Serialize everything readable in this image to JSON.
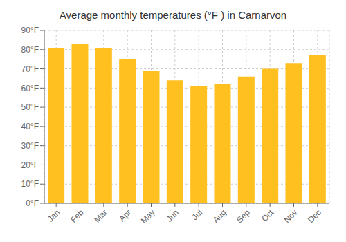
{
  "chart_data": {
    "type": "bar",
    "title": "Average monthly temperatures (°F ) in Carnarvon",
    "categories": [
      "Jan",
      "Feb",
      "Mar",
      "Apr",
      "May",
      "Jun",
      "Jul",
      "Aug",
      "Sep",
      "Oct",
      "Nov",
      "Dec"
    ],
    "values": [
      81,
      83,
      81,
      75,
      69,
      64,
      61,
      62,
      66,
      70,
      73,
      77
    ],
    "color": "#FFC020",
    "ylim": [
      0,
      90
    ],
    "yticks": [
      {
        "value": 0,
        "label": "0°F"
      },
      {
        "value": 10,
        "label": "10°F"
      },
      {
        "value": 20,
        "label": "20°F"
      },
      {
        "value": 30,
        "label": "30°F"
      },
      {
        "value": 40,
        "label": "40°F"
      },
      {
        "value": 50,
        "label": "50°F"
      },
      {
        "value": 60,
        "label": "60°F"
      },
      {
        "value": 70,
        "label": "70°F"
      },
      {
        "value": 80,
        "label": "80°F"
      },
      {
        "value": 90,
        "label": "90°F"
      }
    ],
    "grid": true
  }
}
